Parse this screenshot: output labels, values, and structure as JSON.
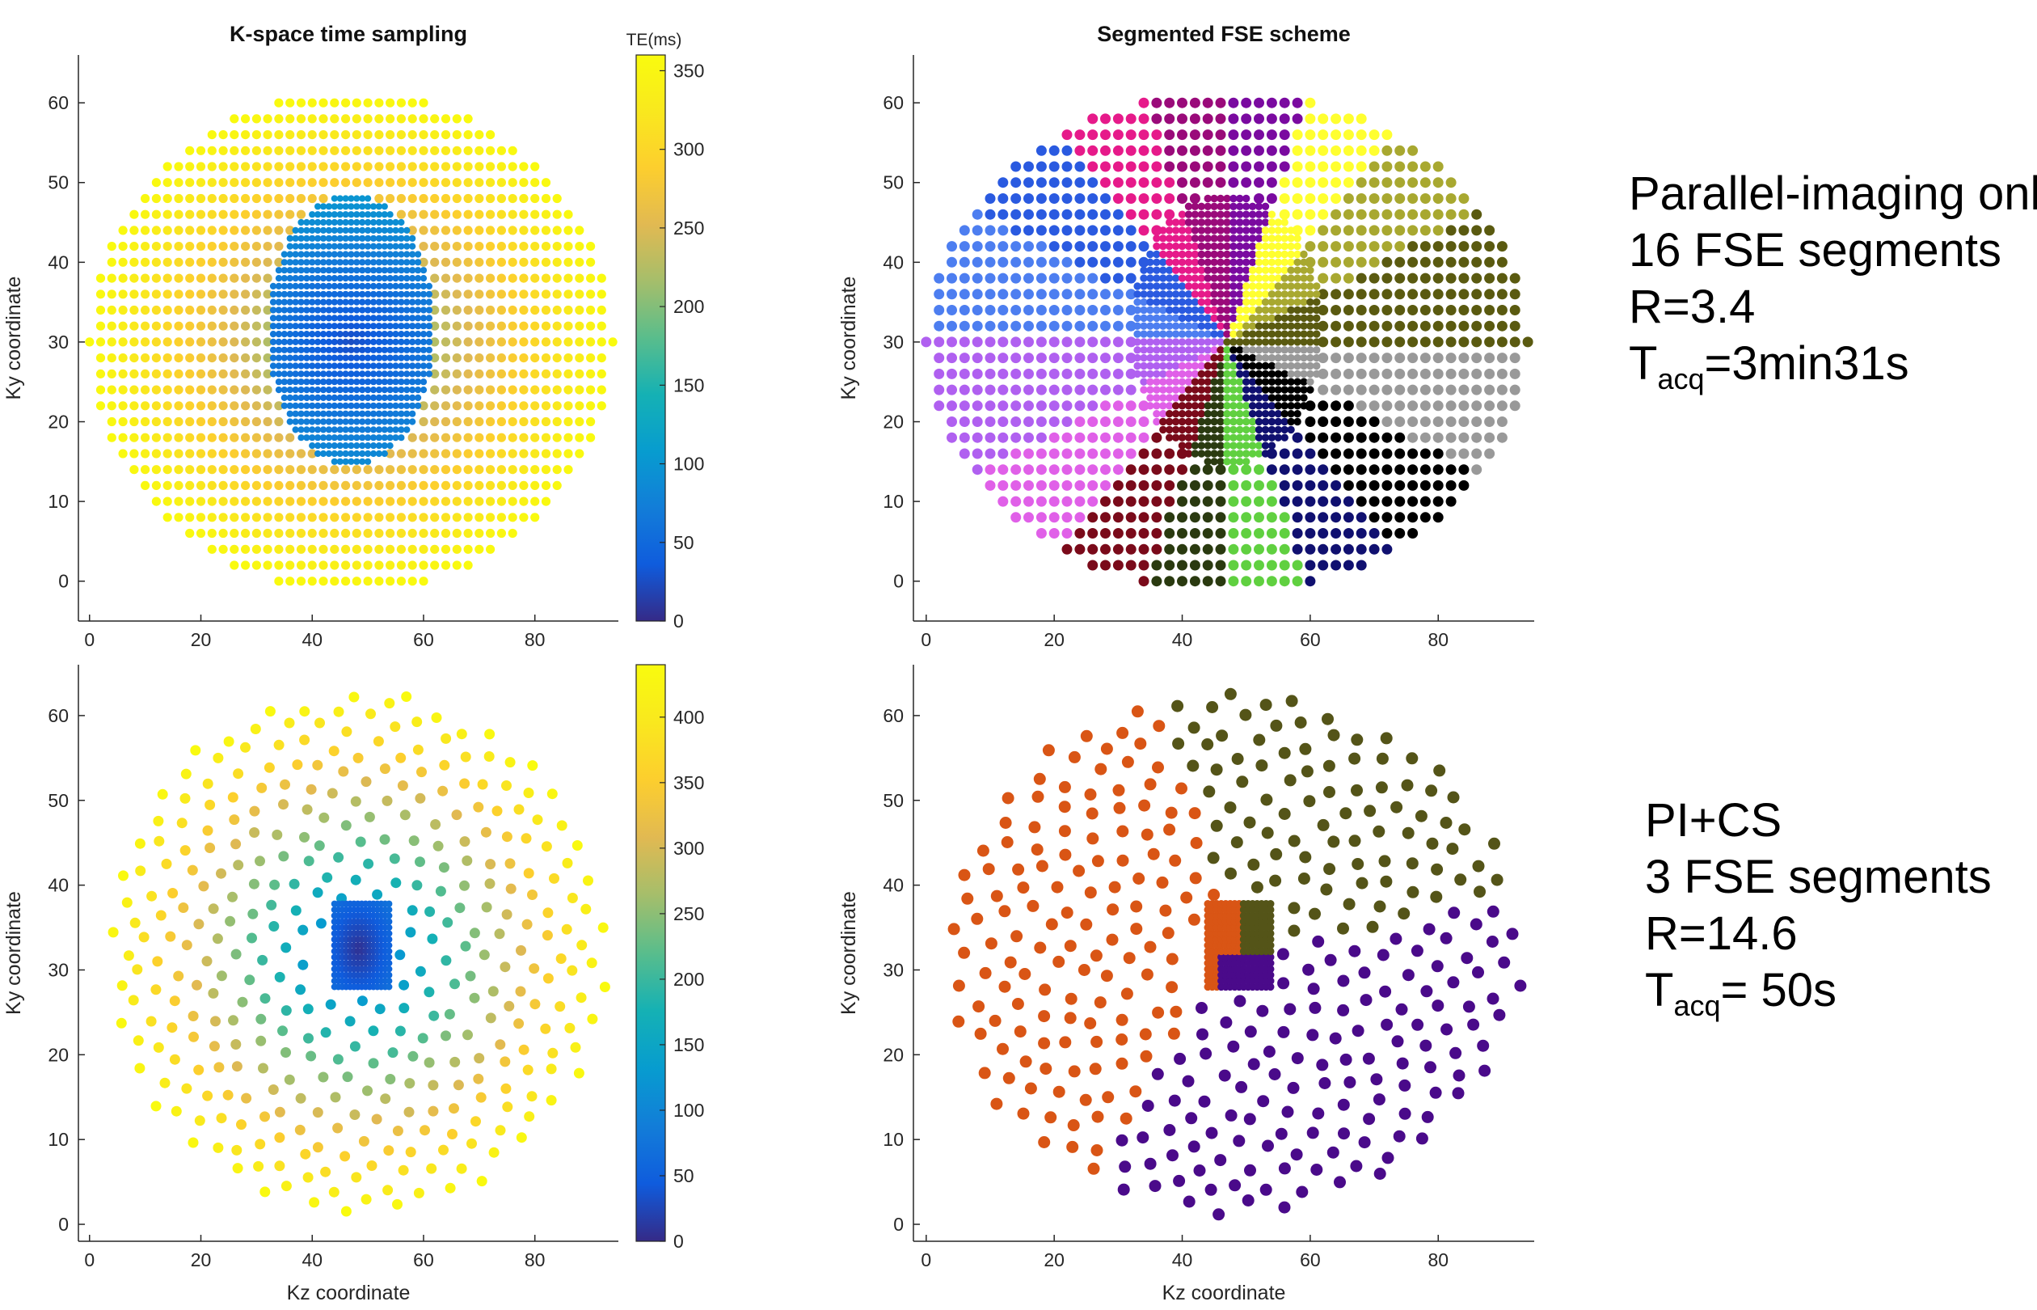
{
  "chart_data": [
    {
      "id": "tl",
      "type": "scatter",
      "title": "K-space time sampling",
      "xlabel": "",
      "ylabel": "Ky coordinate",
      "xlim": [
        -2,
        95
      ],
      "ylim": [
        -5,
        66
      ],
      "xticks": [
        0,
        20,
        40,
        60,
        80
      ],
      "yticks": [
        0,
        10,
        20,
        30,
        40,
        50,
        60
      ],
      "color_encoding": "TE (ms), colormap parula",
      "grid": false,
      "pattern": "fully sampled elliptical region, dense central block",
      "ellipse_center": [
        47,
        30
      ],
      "ellipse_radii": [
        47,
        31
      ],
      "center_block": {
        "kz": [
          33,
          62
        ],
        "ky": [
          15,
          48
        ]
      },
      "colorbar": {
        "label": "TE(ms)",
        "min": 0,
        "max": 360,
        "ticks": [
          0,
          50,
          100,
          150,
          200,
          250,
          300,
          350
        ]
      }
    },
    {
      "id": "tr",
      "type": "scatter",
      "title": "Segmented FSE scheme",
      "xlabel": "",
      "ylabel": "Ky coordinate",
      "xlim": [
        -2,
        95
      ],
      "ylim": [
        -5,
        66
      ],
      "xticks": [
        0,
        20,
        40,
        60,
        80
      ],
      "yticks": [
        0,
        10,
        20,
        30,
        40,
        50,
        60
      ],
      "color_encoding": "FSE segment (16 angular segments)",
      "grid": false,
      "pattern": "fully sampled elliptical region, dense central block",
      "segment_colors": [
        "#7a0aa0",
        "#9a0a7a",
        "#e61a8a",
        "#2a5ae0",
        "#4d7ef0",
        "#b060f0",
        "#e060e8",
        "#7a0a1a",
        "#2a3a10",
        "#60d040",
        "#101070",
        "#000000",
        "#999999",
        "#5a5a10",
        "#a8a830",
        "#ffff30"
      ]
    },
    {
      "id": "bl",
      "type": "scatter",
      "title": "",
      "xlabel": "Kz coordinate",
      "ylabel": "Ky coordinate",
      "xlim": [
        -2,
        95
      ],
      "ylim": [
        -2,
        66
      ],
      "xticks": [
        0,
        20,
        40,
        60,
        80
      ],
      "yticks": [
        0,
        10,
        20,
        30,
        40,
        50,
        60
      ],
      "color_encoding": "TE (ms), colormap parula",
      "grid": false,
      "pattern": "variable-density spiral (compressed sensing) with fully sampled center",
      "center_block": {
        "kz": [
          44,
          54
        ],
        "ky": [
          28,
          38
        ]
      },
      "colorbar": {
        "label": "",
        "min": 0,
        "max": 440,
        "ticks": [
          0,
          50,
          100,
          150,
          200,
          250,
          300,
          350,
          400
        ]
      }
    },
    {
      "id": "br",
      "type": "scatter",
      "title": "",
      "xlabel": "Kz coordinate",
      "ylabel": "Ky coordinate",
      "xlim": [
        -2,
        95
      ],
      "ylim": [
        -2,
        66
      ],
      "xticks": [
        0,
        20,
        40,
        60,
        80
      ],
      "yticks": [
        0,
        10,
        20,
        30,
        40,
        50,
        60
      ],
      "color_encoding": "FSE segment (3 segments)",
      "grid": false,
      "pattern": "variable-density spiral (compressed sensing) with fully sampled center",
      "segment_colors": [
        "#d95515",
        "#545418",
        "#4a0a8a"
      ]
    }
  ],
  "annotations": {
    "top": {
      "line1": "Parallel-imaging only",
      "line2": "16 FSE segments",
      "line3": "R=3.4",
      "tacq_prefix": "T",
      "tacq_sub": "acq",
      "tacq_value": "=3min31s"
    },
    "bottom": {
      "line1": "PI+CS",
      "line2": "3 FSE segments",
      "line3": "R=14.6",
      "tacq_prefix": "T",
      "tacq_sub": "acq",
      "tacq_value": "= 50s"
    }
  }
}
